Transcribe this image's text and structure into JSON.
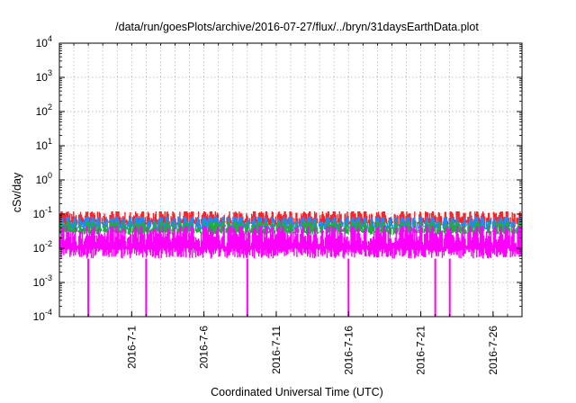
{
  "chart_data": {
    "type": "line",
    "title": "/data/run/goesPlots/archive/2016-07-27/flux/../bryn/31daysEarthData.plot",
    "xlabel": "Coordinated Universal Time (UTC)",
    "ylabel": "cSv/day",
    "yscale": "log",
    "ylim": [
      0.0001,
      10000
    ],
    "xlim": [
      "2016-06-26",
      "2016-07-28"
    ],
    "grid": true,
    "legend": "none",
    "y_ticks": [
      {
        "value": 0.0001,
        "base": "10",
        "exp": "-4"
      },
      {
        "value": 0.001,
        "base": "10",
        "exp": "-3"
      },
      {
        "value": 0.01,
        "base": "10",
        "exp": "-2"
      },
      {
        "value": 0.1,
        "base": "10",
        "exp": "-1"
      },
      {
        "value": 1,
        "base": "10",
        "exp": "0"
      },
      {
        "value": 10,
        "base": "10",
        "exp": "1"
      },
      {
        "value": 100,
        "base": "10",
        "exp": "2"
      },
      {
        "value": 1000,
        "base": "10",
        "exp": "3"
      },
      {
        "value": 10000,
        "base": "10",
        "exp": "4"
      }
    ],
    "x_ticks": [
      "2016-7-1",
      "2016-7-6",
      "2016-7-11",
      "2016-7-16",
      "2016-7-21",
      "2016-7-26"
    ],
    "series": [
      {
        "color": "#ff2222",
        "typical": 0.075,
        "low": 0.045,
        "high": 0.12
      },
      {
        "color": "#2288ff",
        "typical": 0.055,
        "low": 0.035,
        "high": 0.085
      },
      {
        "color": "#22aa44",
        "typical": 0.04,
        "low": 0.025,
        "high": 0.06
      },
      {
        "color": "#ff00ff",
        "typical": 0.02,
        "low": 0.005,
        "high": 0.045,
        "dropouts": [
          "2016-06-28",
          "2016-07-02",
          "2016-07-09",
          "2016-07-16",
          "2016-07-22",
          "2016-07-23"
        ]
      }
    ]
  }
}
